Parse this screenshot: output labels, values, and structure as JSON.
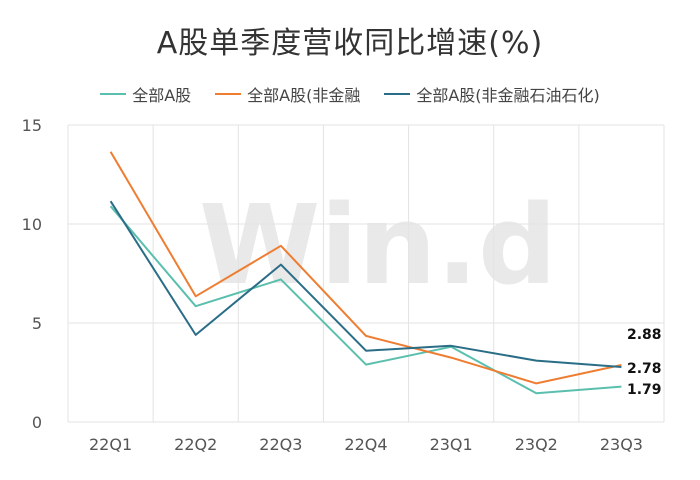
{
  "chart_data": {
    "type": "line",
    "title": "A股单季度营收同比增速(%)",
    "categories": [
      "22Q1",
      "22Q2",
      "22Q3",
      "22Q4",
      "23Q1",
      "23Q2",
      "23Q3"
    ],
    "series": [
      {
        "name": "全部A股",
        "color": "#5bbfae",
        "values": [
          10.9,
          5.85,
          7.2,
          2.9,
          3.8,
          1.45,
          1.79
        ]
      },
      {
        "name": "全部A股(非金融",
        "color": "#ee7d31",
        "values": [
          13.65,
          6.35,
          8.9,
          4.35,
          3.25,
          1.95,
          2.88
        ]
      },
      {
        "name": "全部A股(非金融石油石化)",
        "color": "#2a6d86",
        "values": [
          11.15,
          4.4,
          7.95,
          3.6,
          3.85,
          3.1,
          2.78
        ]
      }
    ],
    "ylim": [
      0,
      15
    ],
    "yticks": [
      0,
      5,
      10,
      15
    ],
    "data_labels": [
      "2.88",
      "2.78",
      "1.79"
    ],
    "watermark": "Win.d",
    "grid": "vertical-and-horizontal",
    "legend_position": "top"
  }
}
